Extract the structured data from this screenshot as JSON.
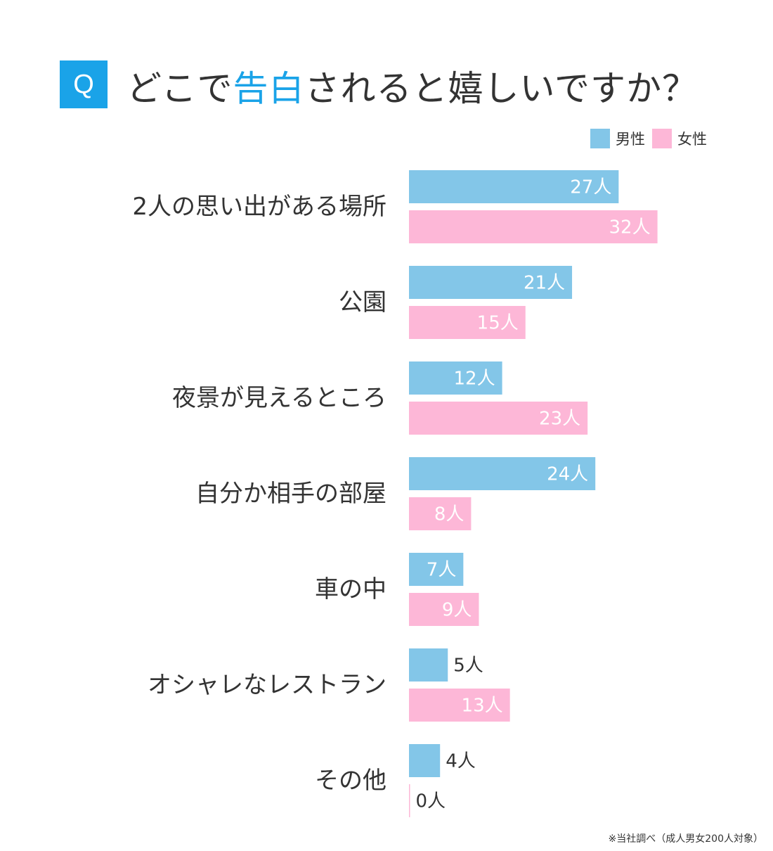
{
  "header": {
    "badge": "Q",
    "title_pre": "どこで",
    "title_highlight": "告白",
    "title_post": "されると嬉しいですか？"
  },
  "legend": [
    {
      "name": "男性",
      "color": "#83c6e8"
    },
    {
      "name": "女性",
      "color": "#fdb7d7"
    }
  ],
  "footnote": "※当社調べ（成人男女200人対象）",
  "colors": {
    "accent": "#1aa3e8",
    "male": "#83c6e8",
    "female": "#fdb7d7",
    "text": "#333333"
  },
  "chart_data": {
    "type": "bar",
    "orientation": "horizontal",
    "unit": "人",
    "categories": [
      "2人の思い出がある場所",
      "公園",
      "夜景が見えるところ",
      "自分か相手の部屋",
      "車の中",
      "オシャレなレストラン",
      "その他"
    ],
    "series": [
      {
        "name": "男性",
        "values": [
          27,
          21,
          12,
          24,
          7,
          5,
          4
        ]
      },
      {
        "name": "女性",
        "values": [
          32,
          15,
          23,
          8,
          9,
          13,
          0
        ]
      }
    ],
    "grid": false,
    "legend_position": "top-right"
  }
}
